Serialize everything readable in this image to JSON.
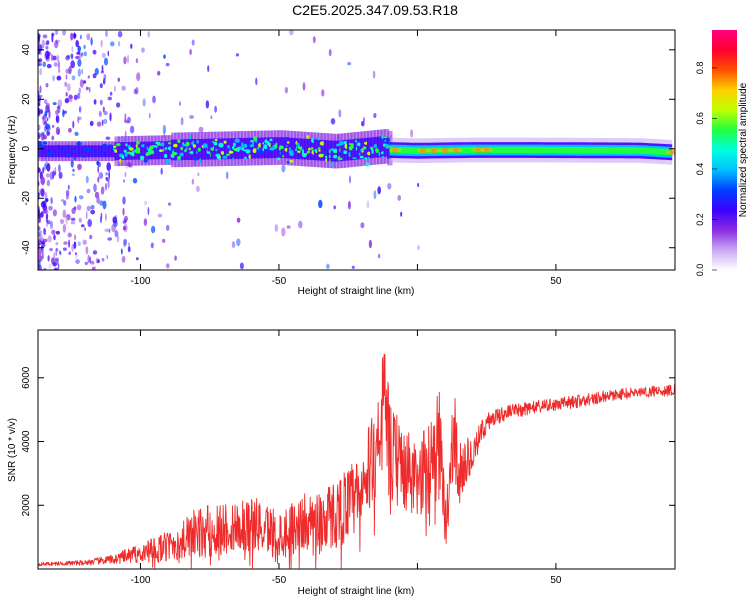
{
  "title": "C2E5.2025.347.09.53.R18",
  "chart_data": [
    {
      "type": "heatmap",
      "name": "spectrogram",
      "xlabel": "Height of straight line (km)",
      "ylabel": "Frequency (Hz)",
      "xlim": [
        -137,
        93
      ],
      "ylim": [
        -49,
        48
      ],
      "xticks": [
        -100,
        -50,
        0,
        50
      ],
      "xtick_labels": [
        "-100",
        "-50",
        "",
        "50"
      ],
      "yticks": [
        -40,
        -20,
        0,
        20,
        40
      ],
      "ytick_labels": [
        "-40",
        "-20",
        "0",
        "20",
        "40"
      ],
      "colorbar": {
        "label": "Normalized spectral amplitude",
        "range": [
          0,
          0.95
        ],
        "ticks": [
          0,
          0.2,
          0.4,
          0.6,
          0.8
        ],
        "tick_labels": [
          "0.0",
          "0.2",
          "0.4",
          "0.6",
          "0.8"
        ],
        "colors": [
          "#ffffff",
          "#c9a8f4",
          "#8a2be2",
          "#3b00ff",
          "#0040ff",
          "#00c0ff",
          "#00ffe0",
          "#20ff40",
          "#c0ff00",
          "#ffd000",
          "#ff5000",
          "#ff0030",
          "#ff0080"
        ]
      },
      "center_line": {
        "x": [
          -137,
          -110,
          -90,
          -70,
          -50,
          -30,
          -12,
          -10,
          0,
          20,
          40,
          60,
          80,
          93
        ],
        "y": [
          -1,
          -1,
          -0.5,
          0,
          0.5,
          -1,
          1,
          -0.5,
          -0.8,
          -0.5,
          -0.5,
          -0.6,
          -0.7,
          -1.5
        ]
      }
    },
    {
      "type": "line",
      "name": "snr",
      "xlabel": "Height of straight line (km)",
      "ylabel": "SNR (10 * v/v)",
      "xlim": [
        -137,
        93
      ],
      "ylim": [
        0,
        7500
      ],
      "xticks": [
        -100,
        -50,
        0,
        50
      ],
      "xtick_labels": [
        "-100",
        "-50",
        "",
        "50"
      ],
      "yticks": [
        2000,
        4000,
        6000
      ],
      "ytick_labels": [
        "2000",
        "4000",
        "6000"
      ],
      "series": [
        {
          "name": "SNR",
          "color": "#ee2a2a",
          "envelope_x": [
            -137,
            -120,
            -110,
            -100,
            -90,
            -80,
            -70,
            -60,
            -50,
            -40,
            -30,
            -20,
            -15,
            -12,
            -10,
            -5,
            0,
            5,
            8,
            10,
            13,
            15,
            20,
            25,
            30,
            40,
            50,
            60,
            70,
            80,
            93
          ],
          "envelope_y": [
            150,
            200,
            300,
            500,
            700,
            1100,
            1300,
            1450,
            1100,
            1500,
            1700,
            2400,
            3800,
            5500,
            3600,
            3200,
            2600,
            3700,
            4300,
            1200,
            4500,
            3000,
            3700,
            4600,
            4850,
            5050,
            5150,
            5300,
            5450,
            5550,
            5620
          ],
          "noise": [
            50,
            80,
            150,
            300,
            500,
            800,
            900,
            850,
            800,
            900,
            1100,
            1300,
            1500,
            1800,
            1600,
            1400,
            1200,
            1400,
            1600,
            900,
            1500,
            1000,
            500,
            300,
            250,
            220,
            200,
            200,
            180,
            180,
            180
          ]
        }
      ]
    }
  ]
}
